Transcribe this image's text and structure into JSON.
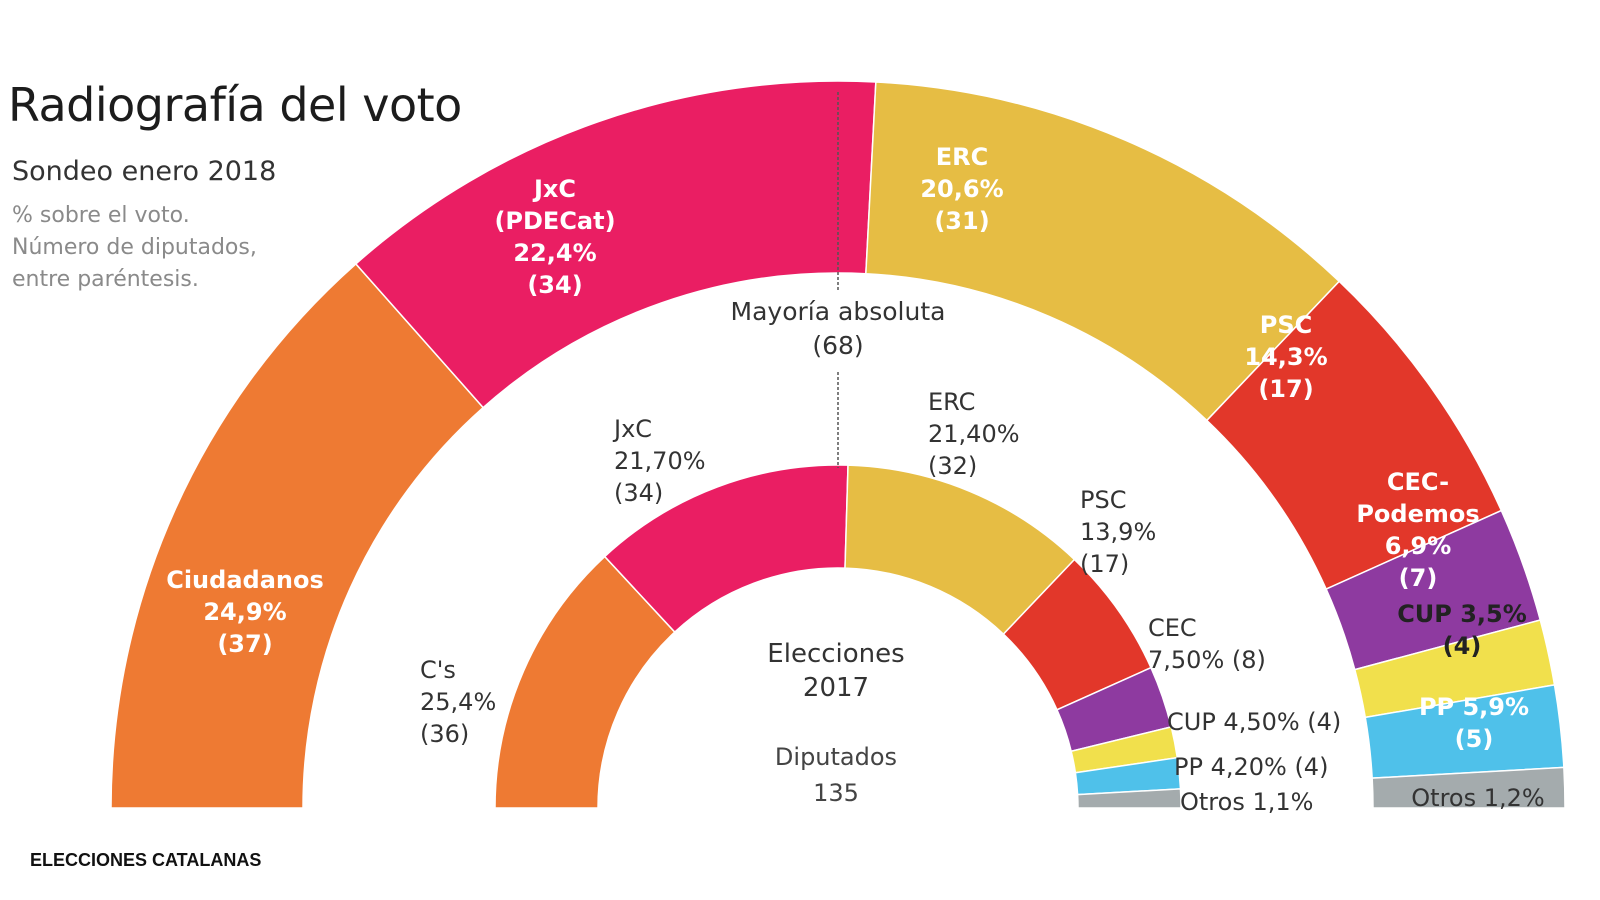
{
  "header": {
    "title": "Radiografía del voto",
    "subtitle": "Sondeo enero 2018",
    "note_lines": [
      "% sobre el voto.",
      "Número de diputados,",
      "entre paréntesis."
    ]
  },
  "footer": {
    "label": "ELECCIONES CATALANAS"
  },
  "chart_data": [
    {
      "type": "pie",
      "variant": "half-donut-parliament",
      "title": "Sondeo enero 2018",
      "total_seats": 135,
      "series": [
        {
          "name": "Ciudadanos",
          "percent": "24,9%",
          "seats": 37,
          "color": "#ee7a33",
          "label_color": "#ffffff"
        },
        {
          "name": "JxC (PDECat)",
          "label_lines": [
            "JxC",
            "(PDECat)"
          ],
          "percent": "22,4%",
          "seats": 34,
          "color": "#ea1e63",
          "label_color": "#ffffff"
        },
        {
          "name": "ERC",
          "percent": "20,6%",
          "seats": 31,
          "color": "#e6bd44",
          "label_color": "#ffffff"
        },
        {
          "name": "PSC",
          "percent": "14,3%",
          "seats": 17,
          "color": "#e2372a",
          "label_color": "#ffffff"
        },
        {
          "name": "CEC-Podemos",
          "label_lines": [
            "CEC-",
            "Podemos"
          ],
          "percent": "6,9%",
          "seats": 7,
          "color": "#8e3aa0",
          "label_color": "#ffffff"
        },
        {
          "name": "CUP",
          "percent": "3,5%",
          "seats": 4,
          "color": "#f1e04c",
          "label_color": "#222222"
        },
        {
          "name": "PP",
          "percent": "5,9%",
          "seats": 5,
          "color": "#4fc1ea",
          "label_color": "#ffffff"
        },
        {
          "name": "Otros",
          "percent": "1,2%",
          "seats": 0,
          "color": "#a4abad",
          "label_color": "#333333"
        }
      ]
    },
    {
      "type": "pie",
      "variant": "half-donut-parliament",
      "title": "Elecciones 2017",
      "center_label": [
        "Elecciones",
        "2017"
      ],
      "seats_label": "Diputados",
      "total_seats": 135,
      "series": [
        {
          "name": "C's",
          "percent": "25,4%",
          "seats": 36,
          "color": "#ee7a33"
        },
        {
          "name": "JxC",
          "percent": "21,70%",
          "seats": 34,
          "color": "#ea1e63"
        },
        {
          "name": "ERC",
          "percent": "21,40%",
          "seats": 32,
          "color": "#e6bd44"
        },
        {
          "name": "PSC",
          "percent": "13,9%",
          "seats": 17,
          "color": "#e2372a"
        },
        {
          "name": "CEC",
          "percent": "7,50%",
          "seats": 8,
          "color": "#8e3aa0"
        },
        {
          "name": "CUP",
          "percent": "4,50%",
          "seats": 4,
          "color": "#f1e04c"
        },
        {
          "name": "PP",
          "percent": "4,20%",
          "seats": 4,
          "color": "#4fc1ea"
        },
        {
          "name": "Otros",
          "percent": "1,1%",
          "seats": 0,
          "color": "#a4abad"
        }
      ]
    }
  ],
  "majority": {
    "label": "Mayoría absoluta",
    "seats": 68,
    "seats_text": "(68)"
  },
  "totals": {
    "label": "Diputados",
    "value": "135"
  }
}
